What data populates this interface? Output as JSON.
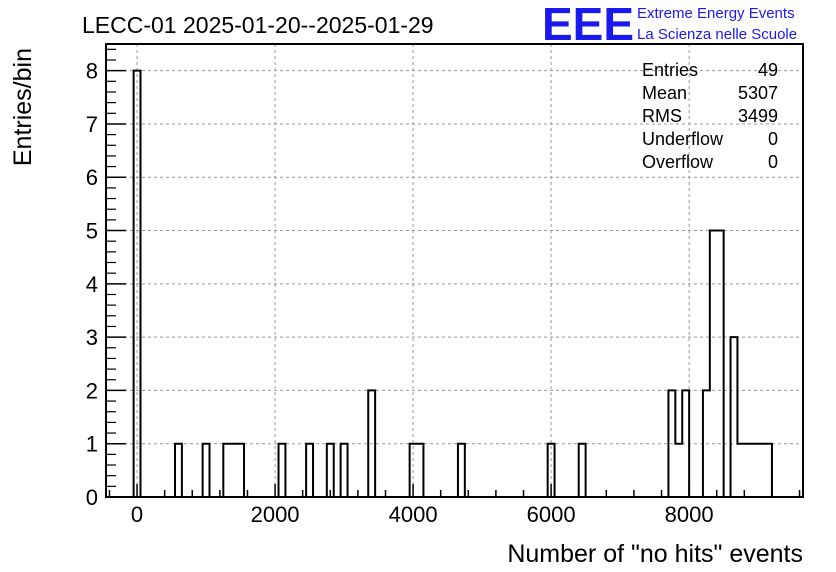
{
  "chart_data": {
    "type": "bar",
    "title": "LECC-01 2025-01-20--2025-01-29",
    "xlabel": "Number of \"no hits\" events",
    "ylabel": "Entries/bin",
    "xlim": [
      -450,
      9650
    ],
    "ylim": [
      0,
      8.5
    ],
    "grid": true,
    "x_ticks": [
      0,
      2000,
      4000,
      6000,
      8000
    ],
    "x_tick_labels": [
      "0",
      "2000",
      "4000",
      "6000",
      "8000"
    ],
    "y_ticks": [
      0,
      1,
      2,
      3,
      4,
      5,
      6,
      7,
      8
    ],
    "y_tick_labels": [
      "0",
      "1",
      "2",
      "3",
      "4",
      "5",
      "6",
      "7",
      "8"
    ],
    "bin_width": 100,
    "bins": [
      {
        "x0": -50,
        "value": 8
      },
      {
        "x0": 550,
        "value": 1
      },
      {
        "x0": 950,
        "value": 1
      },
      {
        "x0": 1250,
        "value": 1
      },
      {
        "x0": 1350,
        "value": 1
      },
      {
        "x0": 1450,
        "value": 1
      },
      {
        "x0": 2050,
        "value": 1
      },
      {
        "x0": 2450,
        "value": 1
      },
      {
        "x0": 2750,
        "value": 1
      },
      {
        "x0": 2950,
        "value": 1
      },
      {
        "x0": 3350,
        "value": 2
      },
      {
        "x0": 3950,
        "value": 1
      },
      {
        "x0": 4050,
        "value": 1
      },
      {
        "x0": 4650,
        "value": 1
      },
      {
        "x0": 5950,
        "value": 1
      },
      {
        "x0": 6400,
        "value": 1
      },
      {
        "x0": 7700,
        "value": 2
      },
      {
        "x0": 7800,
        "value": 1
      },
      {
        "x0": 7900,
        "value": 2
      },
      {
        "x0": 8200,
        "value": 2
      },
      {
        "x0": 8300,
        "value": 5
      },
      {
        "x0": 8400,
        "value": 5
      },
      {
        "x0": 8500,
        "value": 0
      },
      {
        "x0": 8600,
        "value": 3
      },
      {
        "x0": 8700,
        "value": 1
      },
      {
        "x0": 8800,
        "value": 1
      },
      {
        "x0": 8900,
        "value": 1
      },
      {
        "x0": 9000,
        "value": 1
      },
      {
        "x0": 9100,
        "value": 1
      }
    ],
    "stats": [
      {
        "label": "Entries",
        "value": "49"
      },
      {
        "label": "Mean",
        "value": "5307"
      },
      {
        "label": "RMS",
        "value": "3499"
      },
      {
        "label": "Underflow",
        "value": "0"
      },
      {
        "label": "Overflow",
        "value": "0"
      }
    ],
    "logo": {
      "mark": "EEE",
      "line1": "Extreme Energy Events",
      "line2": "La Scienza nelle Scuole",
      "color": "#1a1aee"
    }
  }
}
